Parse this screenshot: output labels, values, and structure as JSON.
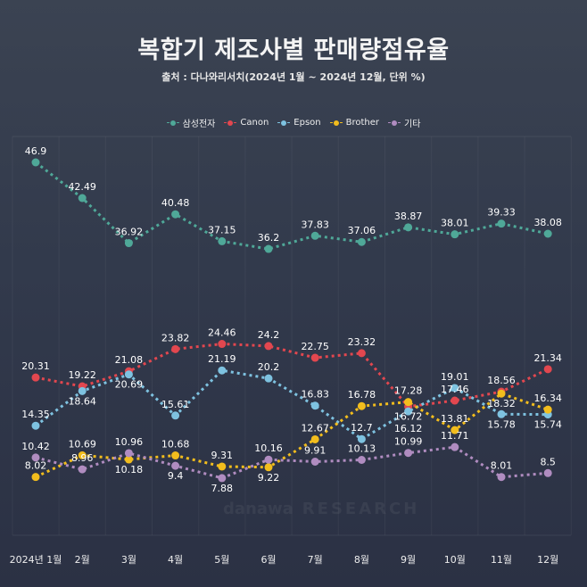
{
  "title": "복합기 제조사별 판매량점유율",
  "subtitle": "출처 : 다나와리서치(2024년 1월 ~ 2024년 12월, 단위 %)",
  "watermark": {
    "line1": "danawa",
    "line2": "RESEARCH"
  },
  "chart_data": {
    "type": "line",
    "title": "복합기 제조사별 판매량점유율",
    "subtitle": "출처 : 다나와리서치(2024년 1월 ~ 2024년 12월, 단위 %)",
    "xlabel": "",
    "ylabel": "",
    "categories": [
      "2024년 1월",
      "2월",
      "3월",
      "4월",
      "5월",
      "6월",
      "7월",
      "8월",
      "9월",
      "10월",
      "11월",
      "12월"
    ],
    "legend_position": "top-center",
    "grid": "vertical",
    "series": [
      {
        "name": "삼성전자",
        "color": "#4fa898",
        "values": [
          46.9,
          42.49,
          36.92,
          40.48,
          37.15,
          36.2,
          37.83,
          37.06,
          38.87,
          38.01,
          39.33,
          38.08
        ]
      },
      {
        "name": "Canon",
        "color": "#e2474f",
        "values": [
          20.31,
          19.22,
          21.08,
          23.82,
          24.46,
          24.2,
          22.75,
          23.32,
          16.72,
          17.46,
          18.56,
          21.34
        ]
      },
      {
        "name": "Epson",
        "color": "#7ec2e0",
        "values": [
          14.35,
          18.64,
          20.69,
          15.61,
          21.19,
          20.2,
          16.83,
          12.7,
          16.12,
          19.01,
          15.78,
          15.74
        ]
      },
      {
        "name": "Brother",
        "color": "#f2bd1d",
        "values": [
          8.02,
          10.69,
          10.18,
          10.68,
          9.31,
          9.22,
          12.67,
          16.78,
          17.28,
          13.81,
          18.32,
          16.34
        ]
      },
      {
        "name": "기타",
        "color": "#b08cc0",
        "values": [
          10.42,
          8.96,
          10.96,
          9.4,
          7.88,
          10.16,
          9.91,
          10.13,
          10.99,
          11.71,
          8.01,
          8.5
        ]
      }
    ],
    "ylim": [
      0,
      50
    ]
  }
}
